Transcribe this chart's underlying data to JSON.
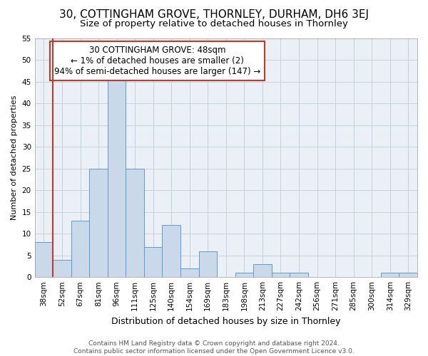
{
  "title1": "30, COTTINGHAM GROVE, THORNLEY, DURHAM, DH6 3EJ",
  "title2": "Size of property relative to detached houses in Thornley",
  "xlabel": "Distribution of detached houses by size in Thornley",
  "ylabel": "Number of detached properties",
  "categories": [
    "38sqm",
    "52sqm",
    "67sqm",
    "81sqm",
    "96sqm",
    "111sqm",
    "125sqm",
    "140sqm",
    "154sqm",
    "169sqm",
    "183sqm",
    "198sqm",
    "213sqm",
    "227sqm",
    "242sqm",
    "256sqm",
    "271sqm",
    "285sqm",
    "300sqm",
    "314sqm",
    "329sqm"
  ],
  "values": [
    8,
    4,
    13,
    25,
    46,
    25,
    7,
    12,
    2,
    6,
    0,
    1,
    3,
    1,
    1,
    0,
    0,
    0,
    0,
    1,
    1
  ],
  "bar_color": "#c9d9ea",
  "bar_edge_color": "#5b9bd5",
  "vline_color": "#c0392b",
  "vline_x": 0.5,
  "ylim": [
    0,
    55
  ],
  "yticks": [
    0,
    5,
    10,
    15,
    20,
    25,
    30,
    35,
    40,
    45,
    50,
    55
  ],
  "grid_color": "#c0ced8",
  "bg_color": "#eaf0f6",
  "annotation_text": "30 COTTINGHAM GROVE: 48sqm\n← 1% of detached houses are smaller (2)\n94% of semi-detached houses are larger (147) →",
  "annotation_box_facecolor": "#ffffff",
  "annotation_box_edgecolor": "#c0392b",
  "footer": "Contains HM Land Registry data © Crown copyright and database right 2024.\nContains public sector information licensed under the Open Government Licence v3.0.",
  "title1_fontsize": 11,
  "title2_fontsize": 9.5,
  "xlabel_fontsize": 9,
  "ylabel_fontsize": 8,
  "tick_fontsize": 7.5,
  "annotation_fontsize": 8.5,
  "footer_fontsize": 6.5
}
